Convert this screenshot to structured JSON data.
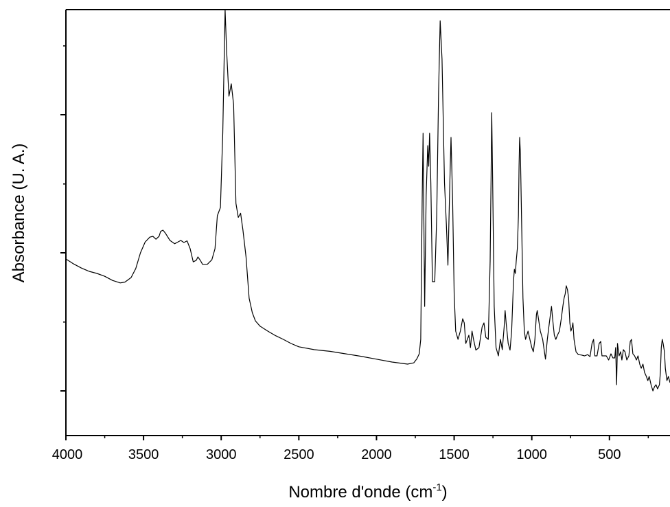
{
  "chart_data": {
    "type": "line",
    "title": "",
    "xlabel": "Nombre d'onde (cm",
    "xlabel_sup": "-1",
    "xlabel_suffix": ")",
    "ylabel": "Absorbance (U. A.)",
    "xlim": [
      4000,
      110
    ],
    "ylim": [
      0,
      1
    ],
    "x_reversed": true,
    "grid": false,
    "legend": "none",
    "y_tick_labels_shown": false,
    "x_ticks": [
      4000,
      3500,
      3000,
      2500,
      2000,
      1500,
      1000,
      500
    ],
    "x_tick_labels": [
      "4000",
      "3500",
      "3000",
      "2500",
      "2000",
      "1500",
      "1000",
      "500"
    ],
    "y_major_ticks": [
      0.075,
      0.41,
      0.745
    ],
    "y_minor_ticks": [
      0.242,
      0.577,
      0.912
    ],
    "series": [
      {
        "color": "#000000",
        "points": [
          [
            4000,
            0.395
          ],
          [
            3950,
            0.383
          ],
          [
            3900,
            0.373
          ],
          [
            3850,
            0.365
          ],
          [
            3800,
            0.36
          ],
          [
            3750,
            0.353
          ],
          [
            3700,
            0.343
          ],
          [
            3650,
            0.337
          ],
          [
            3620,
            0.339
          ],
          [
            3580,
            0.35
          ],
          [
            3550,
            0.372
          ],
          [
            3520,
            0.41
          ],
          [
            3490,
            0.436
          ],
          [
            3460,
            0.448
          ],
          [
            3440,
            0.45
          ],
          [
            3420,
            0.443
          ],
          [
            3400,
            0.45
          ],
          [
            3390,
            0.462
          ],
          [
            3375,
            0.465
          ],
          [
            3360,
            0.458
          ],
          [
            3330,
            0.44
          ],
          [
            3300,
            0.432
          ],
          [
            3280,
            0.436
          ],
          [
            3260,
            0.44
          ],
          [
            3240,
            0.435
          ],
          [
            3220,
            0.439
          ],
          [
            3200,
            0.42
          ],
          [
            3180,
            0.388
          ],
          [
            3160,
            0.392
          ],
          [
            3150,
            0.4
          ],
          [
            3135,
            0.392
          ],
          [
            3120,
            0.382
          ],
          [
            3090,
            0.382
          ],
          [
            3060,
            0.393
          ],
          [
            3040,
            0.42
          ],
          [
            3025,
            0.5
          ],
          [
            3005,
            0.52
          ],
          [
            2990,
            0.7
          ],
          [
            2975,
            1.0
          ],
          [
            2965,
            0.9
          ],
          [
            2950,
            0.79
          ],
          [
            2935,
            0.82
          ],
          [
            2920,
            0.77
          ],
          [
            2905,
            0.53
          ],
          [
            2890,
            0.496
          ],
          [
            2875,
            0.506
          ],
          [
            2860,
            0.465
          ],
          [
            2840,
            0.4
          ],
          [
            2820,
            0.3
          ],
          [
            2800,
            0.265
          ],
          [
            2780,
            0.245
          ],
          [
            2750,
            0.232
          ],
          [
            2700,
            0.22
          ],
          [
            2650,
            0.209
          ],
          [
            2600,
            0.2
          ],
          [
            2550,
            0.19
          ],
          [
            2500,
            0.182
          ],
          [
            2400,
            0.175
          ],
          [
            2300,
            0.171
          ],
          [
            2200,
            0.165
          ],
          [
            2100,
            0.159
          ],
          [
            2000,
            0.152
          ],
          [
            1900,
            0.145
          ],
          [
            1800,
            0.14
          ],
          [
            1760,
            0.143
          ],
          [
            1740,
            0.153
          ],
          [
            1725,
            0.165
          ],
          [
            1715,
            0.2
          ],
          [
            1706,
            0.54
          ],
          [
            1700,
            0.7
          ],
          [
            1690,
            0.28
          ],
          [
            1680,
            0.55
          ],
          [
            1670,
            0.67
          ],
          [
            1664,
            0.62
          ],
          [
            1658,
            0.7
          ],
          [
            1650,
            0.58
          ],
          [
            1640,
            0.34
          ],
          [
            1625,
            0.34
          ],
          [
            1612,
            0.5
          ],
          [
            1600,
            0.8
          ],
          [
            1590,
            0.973
          ],
          [
            1578,
            0.88
          ],
          [
            1562,
            0.58
          ],
          [
            1550,
            0.48
          ],
          [
            1540,
            0.38
          ],
          [
            1528,
            0.575
          ],
          [
            1520,
            0.69
          ],
          [
            1510,
            0.54
          ],
          [
            1500,
            0.31
          ],
          [
            1490,
            0.22
          ],
          [
            1475,
            0.2
          ],
          [
            1460,
            0.22
          ],
          [
            1445,
            0.25
          ],
          [
            1435,
            0.24
          ],
          [
            1425,
            0.19
          ],
          [
            1415,
            0.2
          ],
          [
            1405,
            0.21
          ],
          [
            1395,
            0.18
          ],
          [
            1385,
            0.22
          ],
          [
            1375,
            0.2
          ],
          [
            1360,
            0.174
          ],
          [
            1340,
            0.18
          ],
          [
            1320,
            0.23
          ],
          [
            1308,
            0.24
          ],
          [
            1296,
            0.205
          ],
          [
            1280,
            0.2
          ],
          [
            1268,
            0.39
          ],
          [
            1262,
            0.6
          ],
          [
            1258,
            0.75
          ],
          [
            1252,
            0.58
          ],
          [
            1242,
            0.28
          ],
          [
            1230,
            0.18
          ],
          [
            1215,
            0.16
          ],
          [
            1202,
            0.2
          ],
          [
            1190,
            0.175
          ],
          [
            1178,
            0.23
          ],
          [
            1172,
            0.27
          ],
          [
            1165,
            0.24
          ],
          [
            1152,
            0.19
          ],
          [
            1140,
            0.174
          ],
          [
            1130,
            0.22
          ],
          [
            1118,
            0.34
          ],
          [
            1112,
            0.37
          ],
          [
            1106,
            0.36
          ],
          [
            1100,
            0.39
          ],
          [
            1093,
            0.42
          ],
          [
            1086,
            0.5
          ],
          [
            1082,
            0.62
          ],
          [
            1078,
            0.69
          ],
          [
            1073,
            0.65
          ],
          [
            1066,
            0.5
          ],
          [
            1057,
            0.3
          ],
          [
            1048,
            0.22
          ],
          [
            1040,
            0.2
          ],
          [
            1032,
            0.21
          ],
          [
            1024,
            0.22
          ],
          [
            1012,
            0.2
          ],
          [
            1000,
            0.18
          ],
          [
            990,
            0.17
          ],
          [
            980,
            0.2
          ],
          [
            970,
            0.26
          ],
          [
            965,
            0.27
          ],
          [
            957,
            0.25
          ],
          [
            945,
            0.22
          ],
          [
            930,
            0.2
          ],
          [
            912,
            0.152
          ],
          [
            900,
            0.2
          ],
          [
            890,
            0.23
          ],
          [
            880,
            0.26
          ],
          [
            873,
            0.28
          ],
          [
            866,
            0.25
          ],
          [
            855,
            0.21
          ],
          [
            845,
            0.2
          ],
          [
            835,
            0.21
          ],
          [
            822,
            0.22
          ],
          [
            810,
            0.25
          ],
          [
            800,
            0.28
          ],
          [
            792,
            0.3
          ],
          [
            785,
            0.31
          ],
          [
            778,
            0.33
          ],
          [
            770,
            0.32
          ],
          [
            763,
            0.3
          ],
          [
            755,
            0.24
          ],
          [
            748,
            0.22
          ],
          [
            740,
            0.23
          ],
          [
            735,
            0.24
          ],
          [
            728,
            0.2
          ],
          [
            715,
            0.17
          ],
          [
            700,
            0.163
          ],
          [
            680,
            0.162
          ],
          [
            660,
            0.16
          ],
          [
            640,
            0.163
          ],
          [
            625,
            0.158
          ],
          [
            612,
            0.19
          ],
          [
            602,
            0.2
          ],
          [
            594,
            0.16
          ],
          [
            580,
            0.16
          ],
          [
            566,
            0.19
          ],
          [
            556,
            0.195
          ],
          [
            548,
            0.16
          ],
          [
            535,
            0.16
          ],
          [
            520,
            0.16
          ],
          [
            505,
            0.15
          ],
          [
            490,
            0.165
          ],
          [
            478,
            0.155
          ],
          [
            466,
            0.155
          ],
          [
            460,
            0.18
          ],
          [
            454,
            0.09
          ],
          [
            448,
            0.19
          ],
          [
            438,
            0.16
          ],
          [
            428,
            0.17
          ],
          [
            420,
            0.15
          ],
          [
            410,
            0.175
          ],
          [
            400,
            0.17
          ],
          [
            388,
            0.15
          ],
          [
            375,
            0.16
          ],
          [
            366,
            0.195
          ],
          [
            358,
            0.2
          ],
          [
            349,
            0.165
          ],
          [
            338,
            0.16
          ],
          [
            326,
            0.15
          ],
          [
            316,
            0.16
          ],
          [
            305,
            0.14
          ],
          [
            295,
            0.13
          ],
          [
            284,
            0.14
          ],
          [
            274,
            0.12
          ],
          [
            262,
            0.11
          ],
          [
            253,
            0.1
          ],
          [
            244,
            0.11
          ],
          [
            232,
            0.09
          ],
          [
            220,
            0.075
          ],
          [
            210,
            0.085
          ],
          [
            200,
            0.09
          ],
          [
            190,
            0.08
          ],
          [
            178,
            0.09
          ],
          [
            172,
            0.12
          ],
          [
            166,
            0.18
          ],
          [
            160,
            0.2
          ],
          [
            154,
            0.19
          ],
          [
            146,
            0.17
          ],
          [
            140,
            0.13
          ],
          [
            130,
            0.1
          ],
          [
            120,
            0.11
          ],
          [
            110,
            0.095
          ]
        ]
      }
    ]
  }
}
